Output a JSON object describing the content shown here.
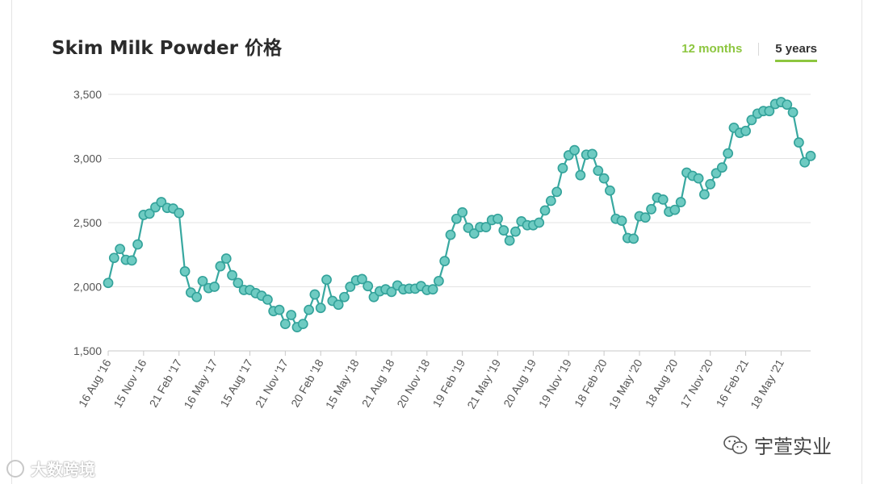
{
  "header": {
    "title": "Skim Milk Powder 价格",
    "range_options": [
      {
        "label": "12 months",
        "active": false
      },
      {
        "label": "5 years",
        "active": true
      }
    ]
  },
  "watermarks": {
    "left": "大数跨境",
    "right": "宇萱实业"
  },
  "colors": {
    "line": "#38a8a0",
    "marker_fill": "#6ecbc2",
    "marker_stroke": "#33a29a",
    "accent": "#8dc63f",
    "grid": "#e3e3e3",
    "axis": "#c8c8c8",
    "tick_text": "#555555"
  },
  "chart_data": {
    "type": "line",
    "title": "Skim Milk Powder 价格",
    "xlabel": "",
    "ylabel": "",
    "ylim": [
      1500,
      3500
    ],
    "yticks": [
      {
        "value": 3500,
        "label": "3,500"
      },
      {
        "value": 3000,
        "label": "3,000"
      },
      {
        "value": 2500,
        "label": "2,500"
      },
      {
        "value": 2000,
        "label": "2,000"
      },
      {
        "value": 1500,
        "label": "1,500"
      }
    ],
    "xticks": [
      {
        "index": 0,
        "label": "16 Aug '16"
      },
      {
        "index": 6,
        "label": "15 Nov '16"
      },
      {
        "index": 12,
        "label": "21 Feb '17"
      },
      {
        "index": 18,
        "label": "16 May '17"
      },
      {
        "index": 24,
        "label": "15 Aug '17"
      },
      {
        "index": 30,
        "label": "21 Nov '17"
      },
      {
        "index": 36,
        "label": "20 Feb '18"
      },
      {
        "index": 42,
        "label": "15 May '18"
      },
      {
        "index": 48,
        "label": "21 Aug '18"
      },
      {
        "index": 54,
        "label": "20 Nov '18"
      },
      {
        "index": 60,
        "label": "19 Feb '19"
      },
      {
        "index": 66,
        "label": "21 May '19"
      },
      {
        "index": 72,
        "label": "20 Aug '19"
      },
      {
        "index": 78,
        "label": "19 Nov '19"
      },
      {
        "index": 84,
        "label": "18 Feb '20"
      },
      {
        "index": 90,
        "label": "19 May '20"
      },
      {
        "index": 96,
        "label": "18 Aug '20"
      },
      {
        "index": 102,
        "label": "17 Nov '20"
      },
      {
        "index": 108,
        "label": "16 Feb '21"
      },
      {
        "index": 114,
        "label": "18 May '21"
      }
    ],
    "grid": true,
    "legend": "none",
    "series": [
      {
        "values": [
          2030,
          2225,
          2295,
          2210,
          2205,
          2330,
          2560,
          2570,
          2620,
          2660,
          2615,
          2610,
          2575,
          2120,
          1955,
          1920,
          2045,
          1990,
          2000,
          2160,
          2220,
          2090,
          2030,
          1975,
          1975,
          1950,
          1930,
          1900,
          1810,
          1820,
          1710,
          1780,
          1685,
          1710,
          1820,
          1940,
          1835,
          2055,
          1890,
          1860,
          1920,
          2000,
          2050,
          2060,
          2005,
          1920,
          1965,
          1980,
          1960,
          2010,
          1980,
          1985,
          1985,
          2005,
          1975,
          1980,
          2045,
          2200,
          2405,
          2530,
          2580,
          2460,
          2415,
          2465,
          2465,
          2520,
          2530,
          2440,
          2360,
          2430,
          2510,
          2480,
          2480,
          2500,
          2595,
          2670,
          2740,
          2925,
          3025,
          3065,
          2870,
          3030,
          3035,
          2905,
          2845,
          2750,
          2530,
          2515,
          2380,
          2375,
          2550,
          2540,
          2605,
          2695,
          2680,
          2585,
          2600,
          2660,
          2890,
          2865,
          2845,
          2720,
          2800,
          2885,
          2930,
          3040,
          3240,
          3200,
          3215,
          3300,
          3350,
          3370,
          3370,
          3425,
          3440,
          3420,
          3360,
          3125,
          2970,
          3020
        ]
      }
    ]
  }
}
